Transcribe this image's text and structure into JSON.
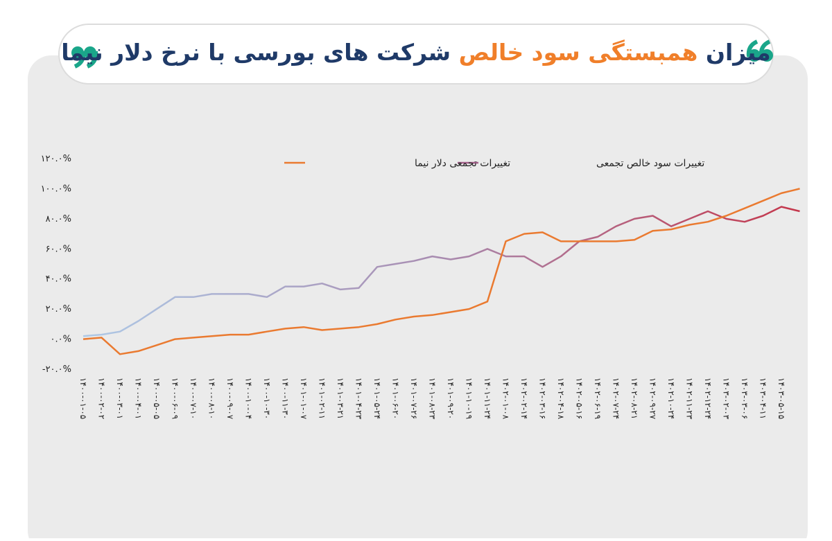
{
  "chart_data": {
    "type": "line",
    "title": [
      "میزان",
      "همبستگی سود خالص",
      "شرکت های بورسی با نرخ دلار نیما"
    ],
    "title_colors": [
      "#1f3a68",
      "#f07f2a",
      "#1f3a68"
    ],
    "categories": [
      "۱۴۰۰-۰۱-۰۵",
      "۱۴۰۰-۰۲-۰۲",
      "۱۴۰۰-۰۳-۰۱",
      "۱۴۰۰-۰۴-۰۱",
      "۱۴۰۰-۰۵-۰۵",
      "۱۴۰۰-۰۶-۰۹",
      "۱۴۰۰-۰۷-۱۰",
      "۱۴۰۰-۰۸-۱۰",
      "۱۴۰۰-۰۹-۰۷",
      "۱۴۰۰-۱۰-۰۴",
      "۱۴۰۰-۱۰-۳۰",
      "۱۴۰۰-۱۱-۳۰",
      "۱۴۰۱-۰۱-۰۷",
      "۱۴۰۱-۰۲-۱۱",
      "۱۴۰۱-۰۳-۲۱",
      "۱۴۰۱-۰۴-۲۳",
      "۱۴۰۱-۰۵-۲۴",
      "۱۴۰۱-۰۶-۲۰",
      "۱۴۰۱-۰۷-۲۶",
      "۱۴۰۱-۰۸-۲۳",
      "۱۴۰۱-۰۹-۲۰",
      "۱۴۰۱-۱۰-۱۹",
      "۱۴۰۱-۱۱-۲۴",
      "۱۴۰۲-۰۱-۰۸",
      "۱۴۰۲-۰۲-۱۴",
      "۱۴۰۲-۰۳-۱۶",
      "۱۴۰۲-۰۴-۱۸",
      "۱۴۰۲-۰۵-۱۶",
      "۱۴۰۲-۰۶-۱۹",
      "۱۴۰۲-۰۷-۲۴",
      "۱۴۰۲-۰۸-۲۱",
      "۱۴۰۲-۰۹-۲۷",
      "۱۴۰۲-۱۰-۲۴",
      "۱۴۰۲-۱۱-۲۳",
      "۱۴۰۲-۱۲-۲۴",
      "۱۴۰۳-۰۲-۰۳",
      "۱۴۰۳-۰۳-۰۶",
      "۱۴۰۳-۰۴-۱۱",
      "۱۴۰۳-۰۵-۱۵",
      null
    ],
    "series": [
      {
        "name": "تغییرات سود خالص تجمعی",
        "color": "#a3608a",
        "gradient": [
          "#aec9e6",
          "#a88bb0",
          "#c4374c"
        ],
        "values": [
          2,
          3,
          5,
          12,
          20,
          28,
          28,
          30,
          30,
          30,
          28,
          35,
          35,
          37,
          33,
          34,
          48,
          50,
          52,
          55,
          53,
          55,
          60,
          55,
          55,
          48,
          55,
          65,
          68,
          75,
          80,
          82,
          75,
          80,
          85,
          80,
          78,
          82,
          88,
          85
        ]
      },
      {
        "name": "تغییرات تجمعی دلار نیما",
        "color": "#ea7a30",
        "values": [
          0,
          1,
          -10,
          -8,
          -4,
          0,
          1,
          2,
          3,
          3,
          5,
          7,
          8,
          6,
          7,
          8,
          10,
          13,
          15,
          16,
          18,
          20,
          25,
          65,
          70,
          71,
          65,
          65,
          65,
          65,
          66,
          72,
          73,
          76,
          78,
          82,
          87,
          92,
          97,
          100
        ]
      }
    ],
    "ylim": [
      -20,
      120
    ],
    "yticks": [
      {
        "value": -20,
        "label": "-۲۰.۰%"
      },
      {
        "value": 0,
        "label": "۰.۰%"
      },
      {
        "value": 20,
        "label": "۲۰.۰%"
      },
      {
        "value": 40,
        "label": "۴۰.۰%"
      },
      {
        "value": 60,
        "label": "۶۰.۰%"
      },
      {
        "value": 80,
        "label": "۸۰.۰%"
      },
      {
        "value": 100,
        "label": "۱۰۰.۰%"
      },
      {
        "value": 120,
        "label": "۱۲۰.۰%"
      }
    ]
  }
}
